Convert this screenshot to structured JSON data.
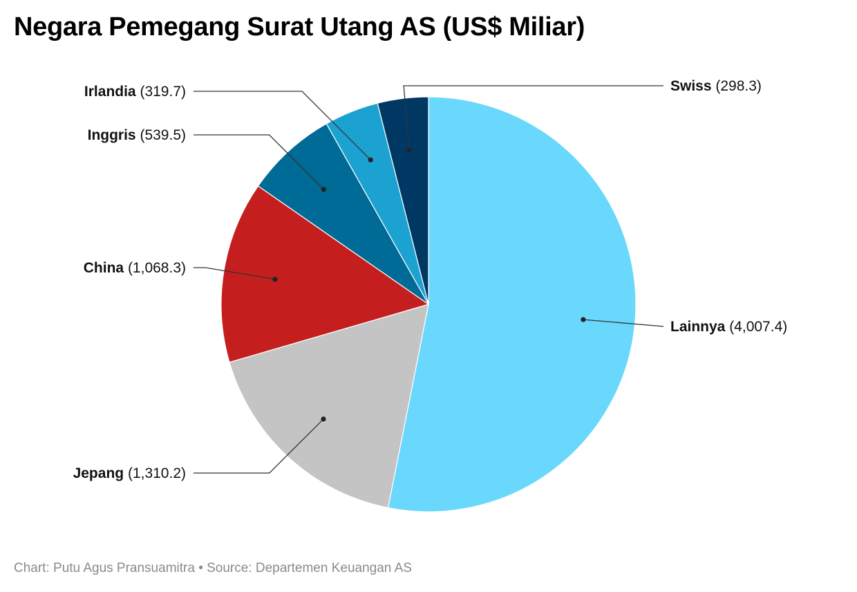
{
  "chart_data": {
    "type": "pie",
    "title": "Negara Pemegang Surat Utang AS (US$ Miliar)",
    "slices": [
      {
        "label": "Lainnya",
        "value": 4007.4,
        "value_text": "(4,007.4)",
        "color": "#6ad8fc"
      },
      {
        "label": "Jepang",
        "value": 1310.2,
        "value_text": "(1,310.2)",
        "color": "#c4c4c4"
      },
      {
        "label": "China",
        "value": 1068.3,
        "value_text": "(1,068.3)",
        "color": "#c51e1e"
      },
      {
        "label": "Inggris",
        "value": 539.5,
        "value_text": "(539.5)",
        "color": "#006b96"
      },
      {
        "label": "Irlandia",
        "value": 319.7,
        "value_text": "(319.7)",
        "color": "#1ba2d0"
      },
      {
        "label": "Swiss",
        "value": 298.3,
        "value_text": "(298.3)",
        "color": "#003864"
      }
    ],
    "start_angle_deg": 0,
    "direction": "clockwise"
  },
  "footer": {
    "text": "Chart: Putu Agus Pransuamitra • Source: Departemen Keuangan AS"
  }
}
